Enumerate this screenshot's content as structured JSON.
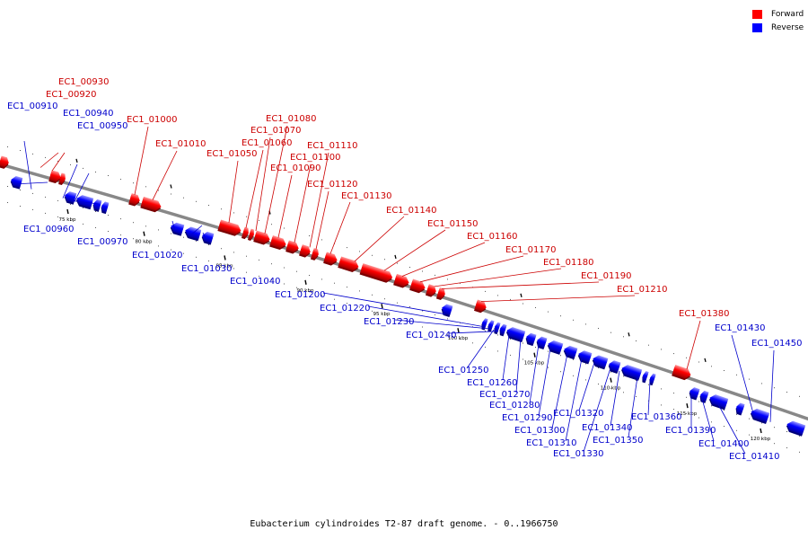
{
  "legend": {
    "forward": {
      "label": "Forward",
      "color": "#ff0000"
    },
    "reverse": {
      "label": "Reverse",
      "color": "#0000ff"
    }
  },
  "caption": "Eubacterium cylindroides T2-87 draft genome. - 0..1966750",
  "colors": {
    "backbone": "#888888",
    "forward_label": "#cc0000",
    "reverse_label": "#0000cc"
  },
  "scale_ticks": [
    "75 kbp",
    "80 kbp",
    "85 kbp",
    "90 kbp",
    "95 kbp",
    "100 kbp",
    "105 kbp",
    "110 kbp",
    "115 kbp",
    "120 kbp"
  ],
  "genes": [
    {
      "id": "EC1_00910",
      "strand": "reverse"
    },
    {
      "id": "EC1_00920",
      "strand": "forward"
    },
    {
      "id": "EC1_00930",
      "strand": "forward"
    },
    {
      "id": "EC1_00940",
      "strand": "reverse"
    },
    {
      "id": "EC1_00950",
      "strand": "reverse"
    },
    {
      "id": "EC1_00960",
      "strand": "reverse"
    },
    {
      "id": "EC1_00970",
      "strand": "reverse"
    },
    {
      "id": "EC1_01000",
      "strand": "forward"
    },
    {
      "id": "EC1_01010",
      "strand": "forward"
    },
    {
      "id": "EC1_01020",
      "strand": "reverse"
    },
    {
      "id": "EC1_01030",
      "strand": "reverse"
    },
    {
      "id": "EC1_01040",
      "strand": "reverse"
    },
    {
      "id": "EC1_01050",
      "strand": "forward"
    },
    {
      "id": "EC1_01060",
      "strand": "forward"
    },
    {
      "id": "EC1_01070",
      "strand": "forward"
    },
    {
      "id": "EC1_01080",
      "strand": "forward"
    },
    {
      "id": "EC1_01090",
      "strand": "forward"
    },
    {
      "id": "EC1_01100",
      "strand": "forward"
    },
    {
      "id": "EC1_01110",
      "strand": "forward"
    },
    {
      "id": "EC1_01120",
      "strand": "forward"
    },
    {
      "id": "EC1_01130",
      "strand": "forward"
    },
    {
      "id": "EC1_01140",
      "strand": "forward"
    },
    {
      "id": "EC1_01150",
      "strand": "forward"
    },
    {
      "id": "EC1_01160",
      "strand": "forward"
    },
    {
      "id": "EC1_01170",
      "strand": "forward"
    },
    {
      "id": "EC1_01180",
      "strand": "forward"
    },
    {
      "id": "EC1_01190",
      "strand": "forward"
    },
    {
      "id": "EC1_01200",
      "strand": "reverse"
    },
    {
      "id": "EC1_01210",
      "strand": "forward"
    },
    {
      "id": "EC1_01220",
      "strand": "reverse"
    },
    {
      "id": "EC1_01230",
      "strand": "reverse"
    },
    {
      "id": "EC1_01240",
      "strand": "reverse"
    },
    {
      "id": "EC1_01250",
      "strand": "reverse"
    },
    {
      "id": "EC1_01260",
      "strand": "reverse"
    },
    {
      "id": "EC1_01270",
      "strand": "reverse"
    },
    {
      "id": "EC1_01280",
      "strand": "reverse"
    },
    {
      "id": "EC1_01290",
      "strand": "reverse"
    },
    {
      "id": "EC1_01300",
      "strand": "reverse"
    },
    {
      "id": "EC1_01310",
      "strand": "reverse"
    },
    {
      "id": "EC1_01320",
      "strand": "reverse"
    },
    {
      "id": "EC1_01330",
      "strand": "reverse"
    },
    {
      "id": "EC1_01340",
      "strand": "reverse"
    },
    {
      "id": "EC1_01350",
      "strand": "reverse"
    },
    {
      "id": "EC1_01360",
      "strand": "reverse"
    },
    {
      "id": "EC1_01380",
      "strand": "forward"
    },
    {
      "id": "EC1_01390",
      "strand": "reverse"
    },
    {
      "id": "EC1_01400",
      "strand": "reverse"
    },
    {
      "id": "EC1_01410",
      "strand": "reverse"
    },
    {
      "id": "EC1_01430",
      "strand": "reverse"
    },
    {
      "id": "EC1_01450",
      "strand": "reverse"
    }
  ]
}
